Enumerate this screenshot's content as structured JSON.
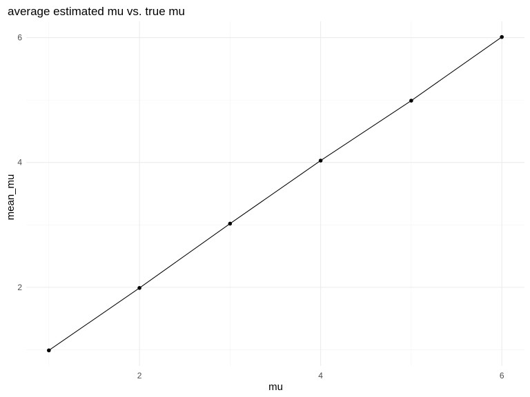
{
  "chart_data": {
    "type": "line",
    "title": "average estimated mu vs. true mu",
    "xlabel": "mu",
    "ylabel": "mean_mu",
    "x": [
      1,
      2,
      3,
      4,
      5,
      6
    ],
    "series": [
      {
        "values": [
          0.99,
          1.99,
          3.02,
          4.03,
          4.99,
          6.01
        ]
      }
    ],
    "xlim": [
      0.75,
      6.25
    ],
    "ylim": [
      0.74,
      6.26
    ],
    "xticks": [
      2,
      4,
      6
    ],
    "yticks": [
      2,
      4,
      6
    ],
    "xtick_labels": [
      "2",
      "4",
      "6"
    ],
    "ytick_labels": [
      "2",
      "4",
      "6"
    ],
    "x_minor": [
      1,
      3,
      5
    ],
    "y_minor": [
      1,
      3,
      5
    ],
    "grid": true,
    "legend": "none",
    "colors": {
      "line": "#000000",
      "grid_major": "#ebebeb",
      "grid_minor": "#f2f2f2",
      "tick_text": "#4d4d4d"
    }
  }
}
